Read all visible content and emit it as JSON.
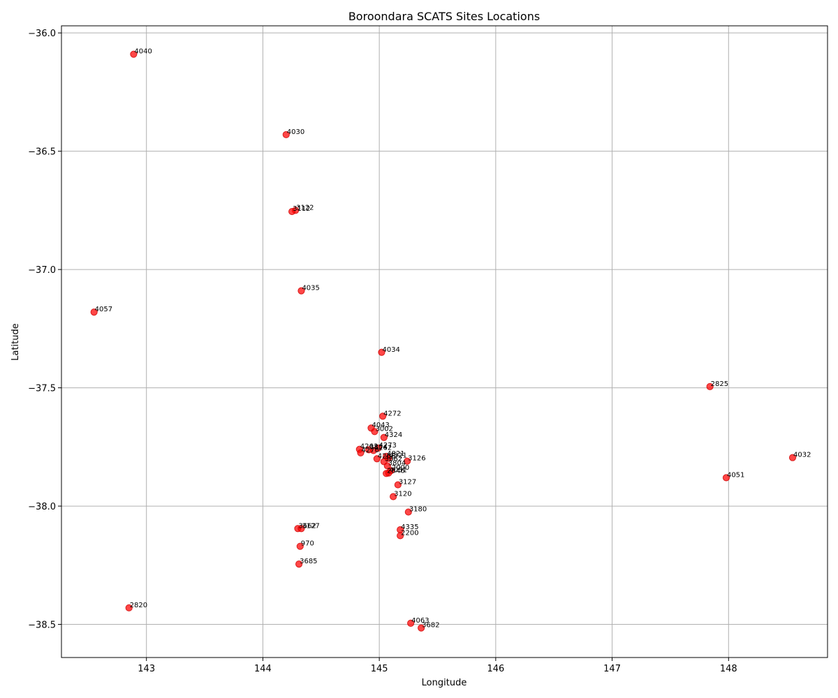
{
  "chart_data": {
    "type": "scatter",
    "title": "Boroondara SCATS Sites Locations",
    "xlabel": "Longitude",
    "ylabel": "Latitude",
    "xlim": [
      142.27,
      148.85
    ],
    "ylim": [
      -38.64,
      -35.97
    ],
    "xticks": [
      143,
      144,
      145,
      146,
      147,
      148
    ],
    "yticks": [
      -36.0,
      -36.5,
      -37.0,
      -37.5,
      -38.0,
      -38.5
    ],
    "ytick_labels": [
      "−36.0",
      "−36.5",
      "−37.0",
      "−37.5",
      "−38.0",
      "−38.5"
    ],
    "grid": true,
    "point_color": "#ff0000",
    "point_edge_color": "#d00000",
    "points": [
      {
        "label": "4040",
        "lon": 142.89,
        "lat": -36.09
      },
      {
        "label": "4030",
        "lon": 144.2,
        "lat": -36.43
      },
      {
        "label": "3122",
        "lon": 144.28,
        "lat": -36.75
      },
      {
        "label": "3112",
        "lon": 144.25,
        "lat": -36.755
      },
      {
        "label": "4035",
        "lon": 144.33,
        "lat": -37.09
      },
      {
        "label": "4057",
        "lon": 142.55,
        "lat": -37.18
      },
      {
        "label": "4034",
        "lon": 145.02,
        "lat": -37.35
      },
      {
        "label": "2825",
        "lon": 147.84,
        "lat": -37.495
      },
      {
        "label": "4272",
        "lon": 145.03,
        "lat": -37.62
      },
      {
        "label": "4043",
        "lon": 144.93,
        "lat": -37.67
      },
      {
        "label": "3002",
        "lon": 144.96,
        "lat": -37.685
      },
      {
        "label": "4324",
        "lon": 145.04,
        "lat": -37.71
      },
      {
        "label": "4273",
        "lon": 144.99,
        "lat": -37.755
      },
      {
        "label": "4263",
        "lon": 144.83,
        "lat": -37.76
      },
      {
        "label": "3804",
        "lon": 144.91,
        "lat": -37.762
      },
      {
        "label": "4262",
        "lon": 144.95,
        "lat": -37.765
      },
      {
        "label": "4270",
        "lon": 144.84,
        "lat": -37.775
      },
      {
        "label": "4821",
        "lon": 145.06,
        "lat": -37.79
      },
      {
        "label": "4321",
        "lon": 145.08,
        "lat": -37.798
      },
      {
        "label": "4266",
        "lon": 144.98,
        "lat": -37.8
      },
      {
        "label": "3126",
        "lon": 145.24,
        "lat": -37.81
      },
      {
        "label": "3662",
        "lon": 145.04,
        "lat": -37.812
      },
      {
        "label": "3804",
        "lon": 145.07,
        "lat": -37.83
      },
      {
        "label": "2000",
        "lon": 145.1,
        "lat": -37.85
      },
      {
        "label": "4051",
        "lon": 145.08,
        "lat": -37.86
      },
      {
        "label": "2846",
        "lon": 145.06,
        "lat": -37.862
      },
      {
        "label": "4032",
        "lon": 148.55,
        "lat": -37.795
      },
      {
        "label": "4051",
        "lon": 147.98,
        "lat": -37.88
      },
      {
        "label": "3127",
        "lon": 145.16,
        "lat": -37.91
      },
      {
        "label": "3120",
        "lon": 145.12,
        "lat": -37.96
      },
      {
        "label": "3180",
        "lon": 145.25,
        "lat": -38.025
      },
      {
        "label": "3662",
        "lon": 144.3,
        "lat": -38.095
      },
      {
        "label": "3127",
        "lon": 144.33,
        "lat": -38.095
      },
      {
        "label": "4335",
        "lon": 145.18,
        "lat": -38.1
      },
      {
        "label": "2200",
        "lon": 145.18,
        "lat": -38.125
      },
      {
        "label": "970",
        "lon": 144.32,
        "lat": -38.17
      },
      {
        "label": "3685",
        "lon": 144.31,
        "lat": -38.245
      },
      {
        "label": "2820",
        "lon": 142.85,
        "lat": -38.43
      },
      {
        "label": "4063",
        "lon": 145.27,
        "lat": -38.495
      },
      {
        "label": "3682",
        "lon": 145.36,
        "lat": -38.515
      }
    ]
  }
}
